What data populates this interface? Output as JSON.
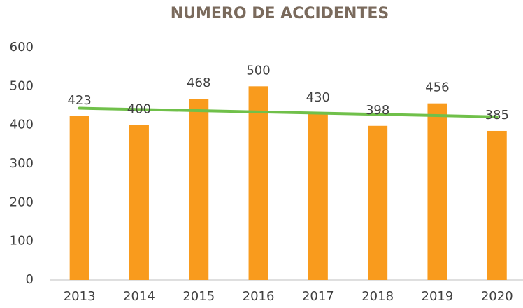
{
  "chart_data": {
    "type": "bar",
    "title": "NUMERO DE ACCIDENTES",
    "categories": [
      "2013",
      "2014",
      "2015",
      "2016",
      "2017",
      "2018",
      "2019",
      "2020"
    ],
    "values": [
      423,
      400,
      468,
      500,
      430,
      398,
      456,
      385
    ],
    "color": "#f99b1d",
    "ylim": [
      0,
      600
    ],
    "yticks": [
      0,
      100,
      200,
      300,
      400,
      500,
      600
    ],
    "grid": false,
    "data_labels": true,
    "trendline": "linear",
    "trendline_color": "#70c04a"
  }
}
